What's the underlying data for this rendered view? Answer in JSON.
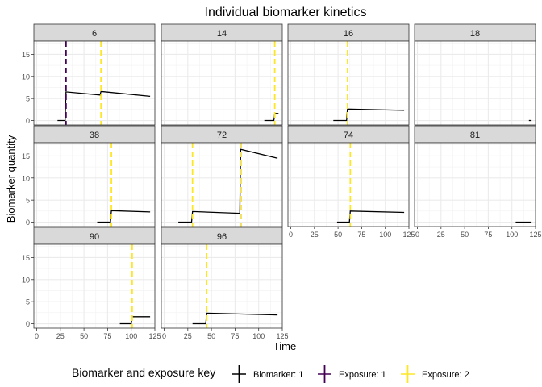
{
  "chart_data": {
    "type": "line",
    "title": "Individual biomarker kinetics",
    "xlabel": "Time",
    "ylabel": "Biomarker quantity",
    "xlim": [
      -3,
      125
    ],
    "ylim": [
      -1,
      18
    ],
    "xticks": [
      0,
      25,
      50,
      75,
      100,
      125
    ],
    "yticks": [
      0,
      5,
      10,
      15
    ],
    "grid": true,
    "legend": {
      "title": "Biomarker and exposure key",
      "position": "bottom",
      "entries": [
        {
          "label": "Biomarker: 1",
          "color": "#000000",
          "style": "solid"
        },
        {
          "label": "Exposure: 1",
          "color": "#440154",
          "style": "solid"
        },
        {
          "label": "Exposure: 2",
          "color": "#FDE725",
          "style": "solid"
        }
      ]
    },
    "colors": {
      "biomarker": "#000000",
      "exposure1": "#440154",
      "exposure2": "#FDE725",
      "strip_bg": "#D9D9D9",
      "grid_major": "#EBEBEB"
    },
    "panels": [
      {
        "id": "6",
        "series": [
          {
            "x": [
              22,
              30,
              31,
              67,
              68,
              120
            ],
            "y": [
              0,
              0,
              6.5,
              5.8,
              6.6,
              5.5
            ]
          }
        ],
        "exposures": [
          {
            "type": 1,
            "time": 31
          },
          {
            "type": 2,
            "time": 68
          }
        ]
      },
      {
        "id": "14",
        "series": [
          {
            "x": [
              106,
              116,
              117,
              121
            ],
            "y": [
              0,
              0,
              1.6,
              1.6
            ]
          }
        ],
        "exposures": [
          {
            "type": 2,
            "time": 117
          }
        ]
      },
      {
        "id": "16",
        "series": [
          {
            "x": [
              45,
              59,
              60,
              120
            ],
            "y": [
              0,
              0,
              2.6,
              2.3
            ]
          }
        ],
        "exposures": [
          {
            "type": 2,
            "time": 60
          }
        ]
      },
      {
        "id": "18",
        "series": [
          {
            "x": [
              118,
              120
            ],
            "y": [
              0,
              0
            ]
          }
        ],
        "exposures": []
      },
      {
        "id": "38",
        "series": [
          {
            "x": [
              64,
              78,
              79,
              120
            ],
            "y": [
              0,
              0,
              2.6,
              2.3
            ]
          }
        ],
        "exposures": [
          {
            "type": 2,
            "time": 79
          }
        ]
      },
      {
        "id": "72",
        "series": [
          {
            "x": [
              15,
              29,
              30,
              80,
              81,
              120
            ],
            "y": [
              0,
              0,
              2.4,
              2.0,
              16.5,
              14.5
            ]
          }
        ],
        "exposures": [
          {
            "type": 2,
            "time": 30
          },
          {
            "type": 1,
            "time": 81
          },
          {
            "type": 2,
            "time": 81
          }
        ]
      },
      {
        "id": "74",
        "series": [
          {
            "x": [
              49,
              62,
              63,
              120
            ],
            "y": [
              0,
              0,
              2.5,
              2.2
            ]
          }
        ],
        "exposures": [
          {
            "type": 2,
            "time": 63
          }
        ]
      },
      {
        "id": "81",
        "series": [
          {
            "x": [
              104,
              120
            ],
            "y": [
              0,
              0
            ]
          }
        ],
        "exposures": []
      },
      {
        "id": "90",
        "series": [
          {
            "x": [
              88,
              100,
              101,
              120
            ],
            "y": [
              0,
              0,
              1.6,
              1.6
            ]
          }
        ],
        "exposures": [
          {
            "type": 2,
            "time": 101
          }
        ]
      },
      {
        "id": "96",
        "series": [
          {
            "x": [
              30,
              44,
              45,
              120
            ],
            "y": [
              0,
              0,
              2.4,
              2.0
            ]
          }
        ],
        "exposures": [
          {
            "type": 2,
            "time": 45
          }
        ]
      }
    ]
  }
}
